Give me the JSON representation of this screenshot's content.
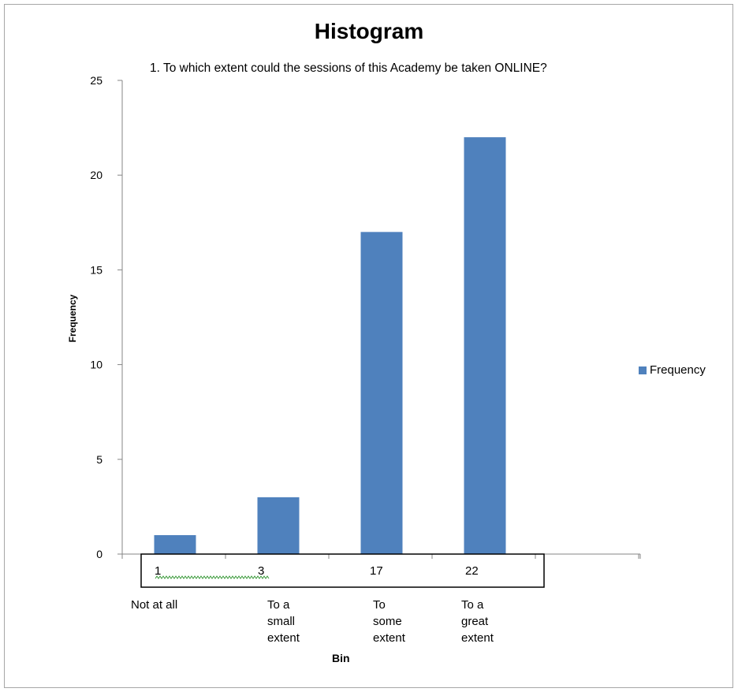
{
  "chart_data": {
    "type": "bar",
    "title": "Histogram",
    "subtitle": "1. To which extent could the sessions of this Academy be taken ONLINE?",
    "xlabel": "Bin",
    "ylabel": "Frequency",
    "categories": [
      "Not at all",
      "To a small extent",
      "To some extent",
      "To a great extent"
    ],
    "category_lines": [
      [
        "Not at all"
      ],
      [
        "To a",
        "small",
        "extent"
      ],
      [
        "To",
        "some",
        "extent"
      ],
      [
        "To a",
        "great",
        "extent"
      ]
    ],
    "series": [
      {
        "name": "Frequency",
        "values": [
          1,
          3,
          17,
          22
        ],
        "color": "#4f81bd"
      }
    ],
    "data_table": [
      "1",
      "3",
      "17",
      "22"
    ],
    "y_ticks": [
      "0",
      "5",
      "10",
      "15",
      "20",
      "25"
    ],
    "ylim": [
      0,
      25
    ],
    "grid": false,
    "legend_position": "right"
  }
}
